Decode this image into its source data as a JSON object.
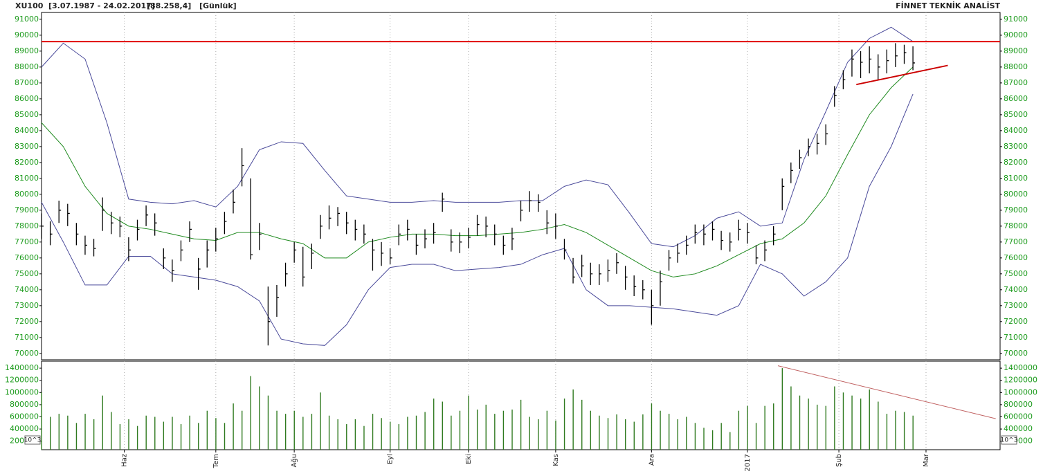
{
  "header": {
    "symbol": "XU100",
    "range": "[3.07.1987 - 24.02.2017]",
    "last": "[88.258,4]",
    "period": "[Günlük]",
    "brand": "FİNNET TEKNİK ANALİST"
  },
  "chart_data": [
    {
      "type": "ohlc",
      "color": "#000000",
      "xlim": [
        0,
        220
      ],
      "ylim": [
        69600,
        91430
      ],
      "yticks": [
        70000,
        71000,
        72000,
        73000,
        74000,
        75000,
        76000,
        77000,
        78000,
        79000,
        80000,
        81000,
        82000,
        83000,
        84000,
        85000,
        86000,
        87000,
        88000,
        89000,
        90000,
        91000
      ],
      "x": [
        0,
        2,
        4,
        6,
        8,
        10,
        12,
        14,
        16,
        18,
        20,
        22,
        24,
        26,
        28,
        30,
        32,
        34,
        36,
        38,
        40,
        42,
        44,
        46,
        48,
        50,
        52,
        54,
        56,
        58,
        60,
        62,
        64,
        66,
        68,
        70,
        72,
        74,
        76,
        78,
        80,
        82,
        84,
        86,
        88,
        90,
        92,
        94,
        96,
        98,
        100,
        102,
        104,
        106,
        108,
        110,
        112,
        114,
        116,
        118,
        120,
        122,
        124,
        126,
        128,
        130,
        132,
        134,
        136,
        138,
        140,
        142,
        144,
        146,
        148,
        150,
        152,
        154,
        156,
        158,
        160,
        162,
        164,
        166,
        168,
        170,
        172,
        174,
        176,
        178,
        180,
        182,
        184,
        186,
        188,
        190,
        192,
        194,
        196,
        198,
        200
      ],
      "high": [
        78800,
        78300,
        79600,
        79400,
        78200,
        77400,
        77200,
        79800,
        78900,
        78600,
        77300,
        78400,
        79300,
        78800,
        76600,
        75900,
        77100,
        78300,
        76000,
        77100,
        77900,
        78900,
        80300,
        82900,
        81000,
        78200,
        74200,
        74300,
        75700,
        77000,
        76700,
        76900,
        78700,
        79300,
        79200,
        78900,
        78400,
        78100,
        77200,
        77000,
        76600,
        78100,
        78400,
        77500,
        77800,
        78200,
        80100,
        77800,
        77600,
        77900,
        78700,
        78600,
        78100,
        77400,
        77900,
        79600,
        80200,
        80000,
        79000,
        78800,
        77200,
        76000,
        76200,
        75700,
        75600,
        75900,
        76300,
        75500,
        74900,
        74600,
        74000,
        75200,
        76500,
        76900,
        77400,
        78100,
        78100,
        78300,
        77700,
        77600,
        78400,
        78200,
        76800,
        77100,
        78000,
        81000,
        82000,
        82800,
        83500,
        83800,
        84400,
        86800,
        87800,
        89100,
        89000,
        89300,
        88800,
        89100,
        89500,
        89400,
        89300
      ],
      "low": [
        77200,
        76800,
        78200,
        78000,
        76800,
        76200,
        76100,
        77700,
        77500,
        77300,
        75800,
        77100,
        78000,
        77400,
        75300,
        74500,
        75800,
        77000,
        74000,
        75400,
        76400,
        77500,
        78800,
        80500,
        75900,
        76500,
        70500,
        72300,
        74200,
        75700,
        74200,
        75300,
        77200,
        77800,
        78000,
        77500,
        77100,
        76900,
        75200,
        75500,
        75600,
        76800,
        77100,
        76200,
        76600,
        76900,
        78900,
        76400,
        76300,
        76600,
        77400,
        77300,
        76800,
        76200,
        76500,
        78300,
        78900,
        78900,
        77500,
        77200,
        75900,
        74400,
        74800,
        74300,
        74300,
        74500,
        75000,
        74000,
        73600,
        73400,
        71800,
        73000,
        75200,
        75700,
        76200,
        76900,
        76800,
        77100,
        76500,
        76400,
        77100,
        76900,
        75600,
        75800,
        76800,
        79000,
        80700,
        81600,
        82400,
        82500,
        83100,
        85500,
        86600,
        87400,
        87300,
        87600,
        87200,
        87600,
        88000,
        88200,
        87800
      ],
      "close": [
        78000,
        77500,
        79000,
        78800,
        77500,
        76800,
        76600,
        79000,
        78200,
        78000,
        76500,
        77800,
        78700,
        78200,
        76000,
        75200,
        76500,
        77800,
        75300,
        76500,
        77200,
        78300,
        79500,
        81800,
        76200,
        77500,
        72000,
        73500,
        75000,
        76500,
        74800,
        76300,
        78000,
        78500,
        78800,
        78200,
        77800,
        77500,
        76500,
        76300,
        76000,
        77500,
        77800,
        76800,
        77200,
        77600,
        79700,
        77000,
        77000,
        77300,
        78100,
        78000,
        77500,
        76800,
        77200,
        79000,
        79600,
        79500,
        78200,
        78000,
        76500,
        74800,
        75500,
        75000,
        75000,
        75200,
        75700,
        74800,
        74200,
        74000,
        73000,
        74500,
        76000,
        76300,
        76800,
        77600,
        77500,
        77800,
        77100,
        77000,
        77800,
        77600,
        76000,
        76500,
        77500,
        80500,
        81500,
        82300,
        83000,
        83200,
        83800,
        86200,
        87200,
        88500,
        88300,
        88500,
        88000,
        88400,
        88700,
        88900,
        88258
      ],
      "bollinger": {
        "band_color": "#4a4a9a",
        "middle_color": "#1f8a1f",
        "x": [
          0,
          5,
          10,
          15,
          20,
          25,
          30,
          35,
          40,
          45,
          50,
          55,
          60,
          65,
          70,
          75,
          80,
          85,
          90,
          95,
          100,
          105,
          110,
          115,
          120,
          125,
          130,
          135,
          140,
          145,
          150,
          155,
          160,
          165,
          170,
          175,
          180,
          185,
          190,
          195,
          200
        ],
        "upper": [
          88000,
          89500,
          88500,
          84500,
          79700,
          79500,
          79400,
          79600,
          79200,
          80500,
          82800,
          83300,
          83200,
          81500,
          79900,
          79700,
          79500,
          79500,
          79600,
          79500,
          79500,
          79500,
          79600,
          79600,
          80500,
          80900,
          80600,
          78800,
          76900,
          76700,
          77400,
          78500,
          78900,
          78000,
          78200,
          82200,
          85200,
          88300,
          89800,
          90500,
          89600
        ],
        "middle": [
          84500,
          83000,
          80500,
          78800,
          78000,
          77800,
          77500,
          77200,
          77100,
          77600,
          77600,
          77200,
          76900,
          76000,
          76000,
          77000,
          77300,
          77500,
          77500,
          77400,
          77400,
          77500,
          77600,
          77800,
          78100,
          77600,
          76800,
          76000,
          75200,
          74800,
          75000,
          75500,
          76200,
          76900,
          77200,
          78200,
          79900,
          82500,
          85000,
          86700,
          88000
        ],
        "lower": [
          79500,
          77000,
          74300,
          74300,
          76100,
          76100,
          75000,
          74800,
          74600,
          74200,
          73300,
          70900,
          70600,
          70500,
          71800,
          74000,
          75400,
          75600,
          75600,
          75200,
          75300,
          75400,
          75600,
          76200,
          76600,
          74000,
          73000,
          73000,
          72900,
          72800,
          72600,
          72400,
          73000,
          75600,
          75000,
          73600,
          74500,
          76000,
          80500,
          83000,
          86300
        ]
      },
      "lines": [
        {
          "color": "#e00000",
          "x": [
            0,
            220
          ],
          "y": [
            89600,
            89600
          ]
        },
        {
          "color": "#cc0000",
          "x": [
            187,
            208
          ],
          "y": [
            86900,
            88100
          ]
        }
      ]
    },
    {
      "type": "bar",
      "color": "#2f7a1f",
      "unit_label": "10^3",
      "xlim": [
        0,
        220
      ],
      "ylim": [
        60000,
        1515000
      ],
      "yticks": [
        200000,
        400000,
        600000,
        800000,
        1000000,
        1200000,
        1400000
      ],
      "xticks": [
        {
          "value": 19,
          "label": "Haz"
        },
        {
          "value": 40,
          "label": "Tem"
        },
        {
          "value": 58,
          "label": "Ağu"
        },
        {
          "value": 80,
          "label": "Eyl"
        },
        {
          "value": 98,
          "label": "Eki"
        },
        {
          "value": 118,
          "label": "Kas"
        },
        {
          "value": 140,
          "label": "Ara"
        },
        {
          "value": 162,
          "label": "2017"
        },
        {
          "value": 183,
          "label": "Şub"
        },
        {
          "value": 203,
          "label": "Mar"
        }
      ],
      "x": [
        0,
        2,
        4,
        6,
        8,
        10,
        12,
        14,
        16,
        18,
        20,
        22,
        24,
        26,
        28,
        30,
        32,
        34,
        36,
        38,
        40,
        42,
        44,
        46,
        48,
        50,
        52,
        54,
        56,
        58,
        60,
        62,
        64,
        66,
        68,
        70,
        72,
        74,
        76,
        78,
        80,
        82,
        84,
        86,
        88,
        90,
        92,
        94,
        96,
        98,
        100,
        102,
        104,
        106,
        108,
        110,
        112,
        114,
        116,
        118,
        120,
        122,
        124,
        126,
        128,
        130,
        132,
        134,
        136,
        138,
        140,
        142,
        144,
        146,
        148,
        150,
        152,
        154,
        156,
        158,
        160,
        162,
        164,
        166,
        168,
        170,
        172,
        174,
        176,
        178,
        180,
        182,
        184,
        186,
        188,
        190,
        192,
        194,
        196,
        198,
        200
      ],
      "values": [
        1000000,
        600000,
        650000,
        620000,
        500000,
        650000,
        560000,
        950000,
        680000,
        480000,
        560000,
        450000,
        620000,
        600000,
        520000,
        600000,
        480000,
        620000,
        500000,
        700000,
        580000,
        500000,
        820000,
        700000,
        1270000,
        1100000,
        950000,
        700000,
        650000,
        700000,
        600000,
        650000,
        1000000,
        620000,
        560000,
        480000,
        560000,
        450000,
        650000,
        580000,
        520000,
        480000,
        600000,
        620000,
        680000,
        900000,
        850000,
        620000,
        700000,
        950000,
        720000,
        800000,
        650000,
        700000,
        720000,
        880000,
        600000,
        560000,
        700000,
        540000,
        900000,
        1050000,
        880000,
        700000,
        620000,
        580000,
        640000,
        560000,
        520000,
        640000,
        820000,
        700000,
        650000,
        560000,
        600000,
        500000,
        420000,
        380000,
        500000,
        350000,
        700000,
        780000,
        500000,
        780000,
        820000,
        1400000,
        1100000,
        950000,
        900000,
        800000,
        780000,
        1100000,
        1000000,
        950000,
        900000,
        1050000,
        850000,
        650000,
        700000,
        680000,
        620000
      ],
      "lines": [
        {
          "color": "#c06060",
          "x": [
            169,
            219
          ],
          "y": [
            1440000,
            570000
          ]
        }
      ]
    }
  ]
}
